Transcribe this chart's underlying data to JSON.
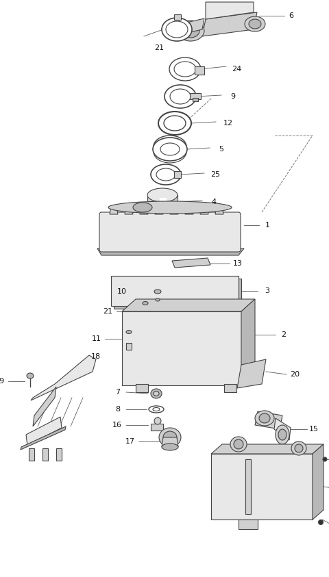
{
  "background_color": "#ffffff",
  "fig_width": 4.8,
  "fig_height": 8.43,
  "dpi": 100,
  "line_color": "#444444",
  "fill_light": "#e8e8e8",
  "fill_mid": "#d0d0d0",
  "fill_dark": "#b8b8b8",
  "fill_white": "#ffffff",
  "label_fontsize": 7.5
}
